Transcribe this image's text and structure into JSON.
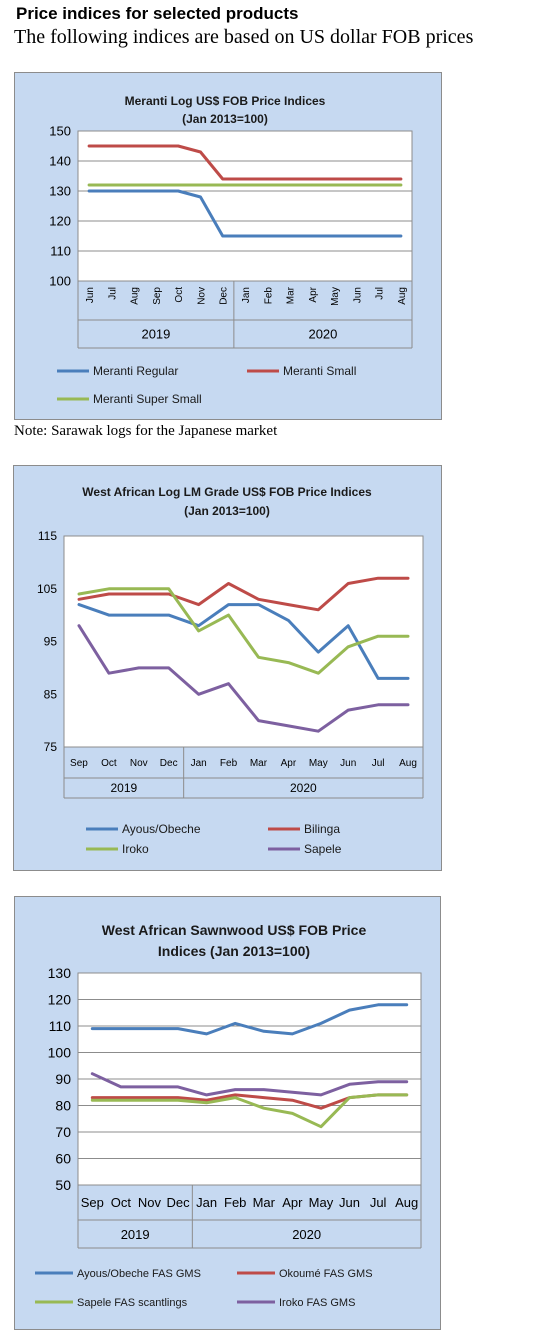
{
  "header": {
    "title": "Price indices for selected products",
    "subtitle": "The following indices are based on US dollar FOB prices"
  },
  "note": "Note: Sarawak logs for the Japanese market",
  "chart_data": [
    {
      "type": "line",
      "title_line1": "Meranti Log US$ FOB Price Indices",
      "title_line2": "(Jan 2013=100)",
      "categories": [
        "Jun",
        "Jul",
        "Aug",
        "Sep",
        "Oct",
        "Nov",
        "Dec",
        "Jan",
        "Feb",
        "Mar",
        "Apr",
        "May",
        "Jun",
        "Jul",
        "Aug"
      ],
      "year_groups": [
        {
          "label": "2019",
          "count": 7
        },
        {
          "label": "2020",
          "count": 8
        }
      ],
      "ylim": [
        100,
        150
      ],
      "yticks": [
        100,
        110,
        120,
        130,
        140,
        150
      ],
      "x_label_rotated": true,
      "grid": true,
      "legend_position": "bottom",
      "series": [
        {
          "name": "Meranti Regular",
          "color": "#4a7ebb",
          "values": [
            130,
            130,
            130,
            130,
            130,
            128,
            115,
            115,
            115,
            115,
            115,
            115,
            115,
            115,
            115
          ]
        },
        {
          "name": "Meranti Small",
          "color": "#be4b48",
          "values": [
            145,
            145,
            145,
            145,
            145,
            143,
            134,
            134,
            134,
            134,
            134,
            134,
            134,
            134,
            134
          ]
        },
        {
          "name": "Meranti Super Small",
          "color": "#98b954",
          "values": [
            132,
            132,
            132,
            132,
            132,
            132,
            132,
            132,
            132,
            132,
            132,
            132,
            132,
            132,
            132
          ]
        }
      ]
    },
    {
      "type": "line",
      "title_line1": "West African Log LM Grade US$ FOB Price Indices",
      "title_line2": "(Jan 2013=100)",
      "categories": [
        "Sep",
        "Oct",
        "Nov",
        "Dec",
        "Jan",
        "Feb",
        "Mar",
        "Apr",
        "May",
        "Jun",
        "Jul",
        "Aug"
      ],
      "year_groups": [
        {
          "label": "2019",
          "count": 4
        },
        {
          "label": "2020",
          "count": 8
        }
      ],
      "ylim": [
        75,
        115
      ],
      "yticks": [
        75,
        85,
        95,
        105,
        115
      ],
      "x_label_rotated": false,
      "grid": false,
      "legend_position": "bottom",
      "series": [
        {
          "name": "Ayous/Obeche",
          "color": "#4a7ebb",
          "values": [
            102,
            100,
            100,
            100,
            98,
            102,
            102,
            99,
            93,
            98,
            88,
            88
          ]
        },
        {
          "name": "Bilinga",
          "color": "#be4b48",
          "values": [
            103,
            104,
            104,
            104,
            102,
            106,
            103,
            102,
            101,
            106,
            107,
            107
          ]
        },
        {
          "name": "Iroko",
          "color": "#98b954",
          "values": [
            104,
            105,
            105,
            105,
            97,
            100,
            92,
            91,
            89,
            94,
            96,
            96
          ]
        },
        {
          "name": "Sapele",
          "color": "#7d60a0",
          "values": [
            98,
            89,
            90,
            90,
            85,
            87,
            80,
            79,
            78,
            82,
            83,
            83
          ]
        }
      ]
    },
    {
      "type": "line",
      "title_line1": "West African Sawnwood US$ FOB Price",
      "title_line2": "Indices (Jan 2013=100)",
      "categories": [
        "Sep",
        "Oct",
        "Nov",
        "Dec",
        "Jan",
        "Feb",
        "Mar",
        "Apr",
        "May",
        "Jun",
        "Jul",
        "Aug"
      ],
      "year_groups": [
        {
          "label": "2019",
          "count": 4
        },
        {
          "label": "2020",
          "count": 8
        }
      ],
      "ylim": [
        50,
        130
      ],
      "yticks": [
        50,
        60,
        70,
        80,
        90,
        100,
        110,
        120,
        130
      ],
      "x_label_rotated": false,
      "grid": true,
      "legend_position": "bottom",
      "series": [
        {
          "name": "Ayous/Obeche FAS GMS",
          "color": "#4a7ebb",
          "values": [
            109,
            109,
            109,
            109,
            107,
            111,
            108,
            107,
            111,
            116,
            118,
            118
          ]
        },
        {
          "name": "Okoumé FAS GMS",
          "color": "#be4b48",
          "values": [
            83,
            83,
            83,
            83,
            82,
            84,
            83,
            82,
            79,
            83,
            84,
            84
          ]
        },
        {
          "name": "Sapele FAS scantlings",
          "color": "#98b954",
          "values": [
            82,
            82,
            82,
            82,
            81,
            83,
            79,
            77,
            72,
            83,
            84,
            84
          ]
        },
        {
          "name": "Iroko FAS GMS",
          "color": "#7d60a0",
          "values": [
            92,
            87,
            87,
            87,
            84,
            86,
            86,
            85,
            84,
            88,
            89,
            89
          ]
        }
      ]
    }
  ]
}
